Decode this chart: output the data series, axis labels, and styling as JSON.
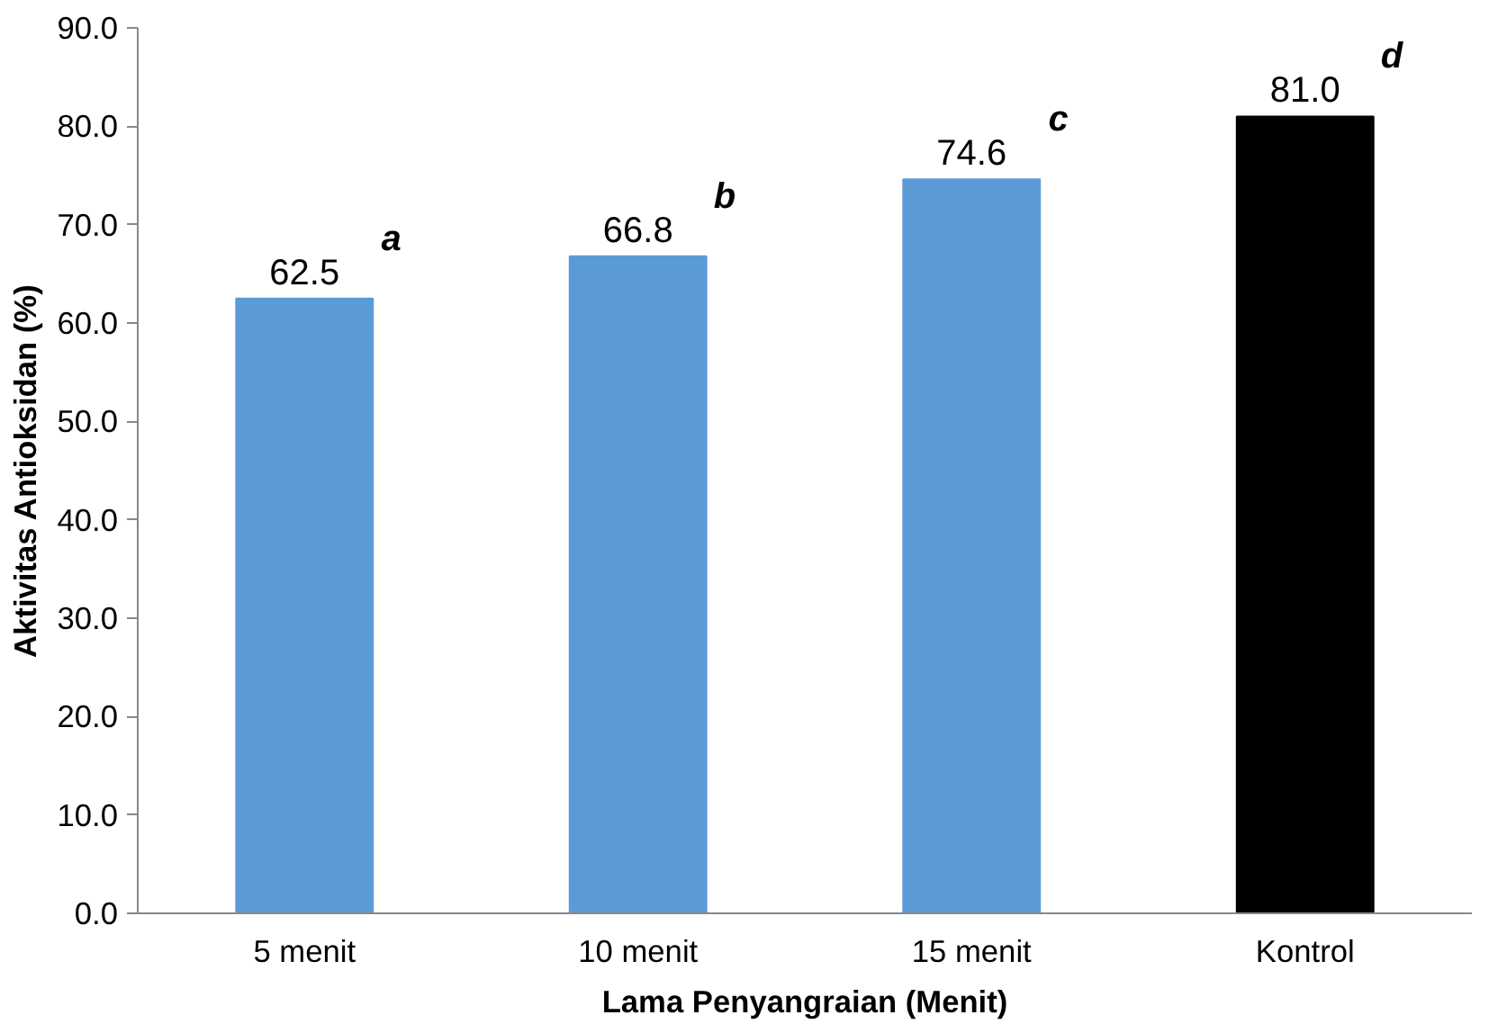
{
  "chart_data": {
    "type": "bar",
    "xlabel": "Lama Penyangraian (Menit)",
    "ylabel": "Aktivitas Antioksidan (%)",
    "categories": [
      "5 menit",
      "10 menit",
      "15 menit",
      "Kontrol"
    ],
    "values": [
      62.5,
      66.8,
      74.6,
      81.0
    ],
    "colors": [
      "#5b9bd5",
      "#5b9bd5",
      "#5b9bd5",
      "#000000"
    ],
    "value_labels": [
      "62.5",
      "66.8",
      "74.6",
      "81.0"
    ],
    "ylim": [
      0,
      90
    ],
    "yticks": [
      {
        "value": 0,
        "label": "0.0"
      },
      {
        "value": 10,
        "label": "10.0"
      },
      {
        "value": 20,
        "label": "20.0"
      },
      {
        "value": 30,
        "label": "30.0"
      },
      {
        "value": 40,
        "label": "40.0"
      },
      {
        "value": 50,
        "label": "50.0"
      },
      {
        "value": 60,
        "label": "60.0"
      },
      {
        "value": 70,
        "label": "70.0"
      },
      {
        "value": 80,
        "label": "80.0"
      },
      {
        "value": 90,
        "label": "90.0"
      }
    ],
    "annotations": [
      {
        "text": "a",
        "x": "5 menit",
        "y": 62.5
      },
      {
        "text": "b",
        "x": "10 menit",
        "y": 66.8
      },
      {
        "text": "c",
        "x": "15 menit",
        "y": 74.6
      },
      {
        "text": "d",
        "x": "Kontrol",
        "y": 81.0
      }
    ],
    "grid": false
  }
}
